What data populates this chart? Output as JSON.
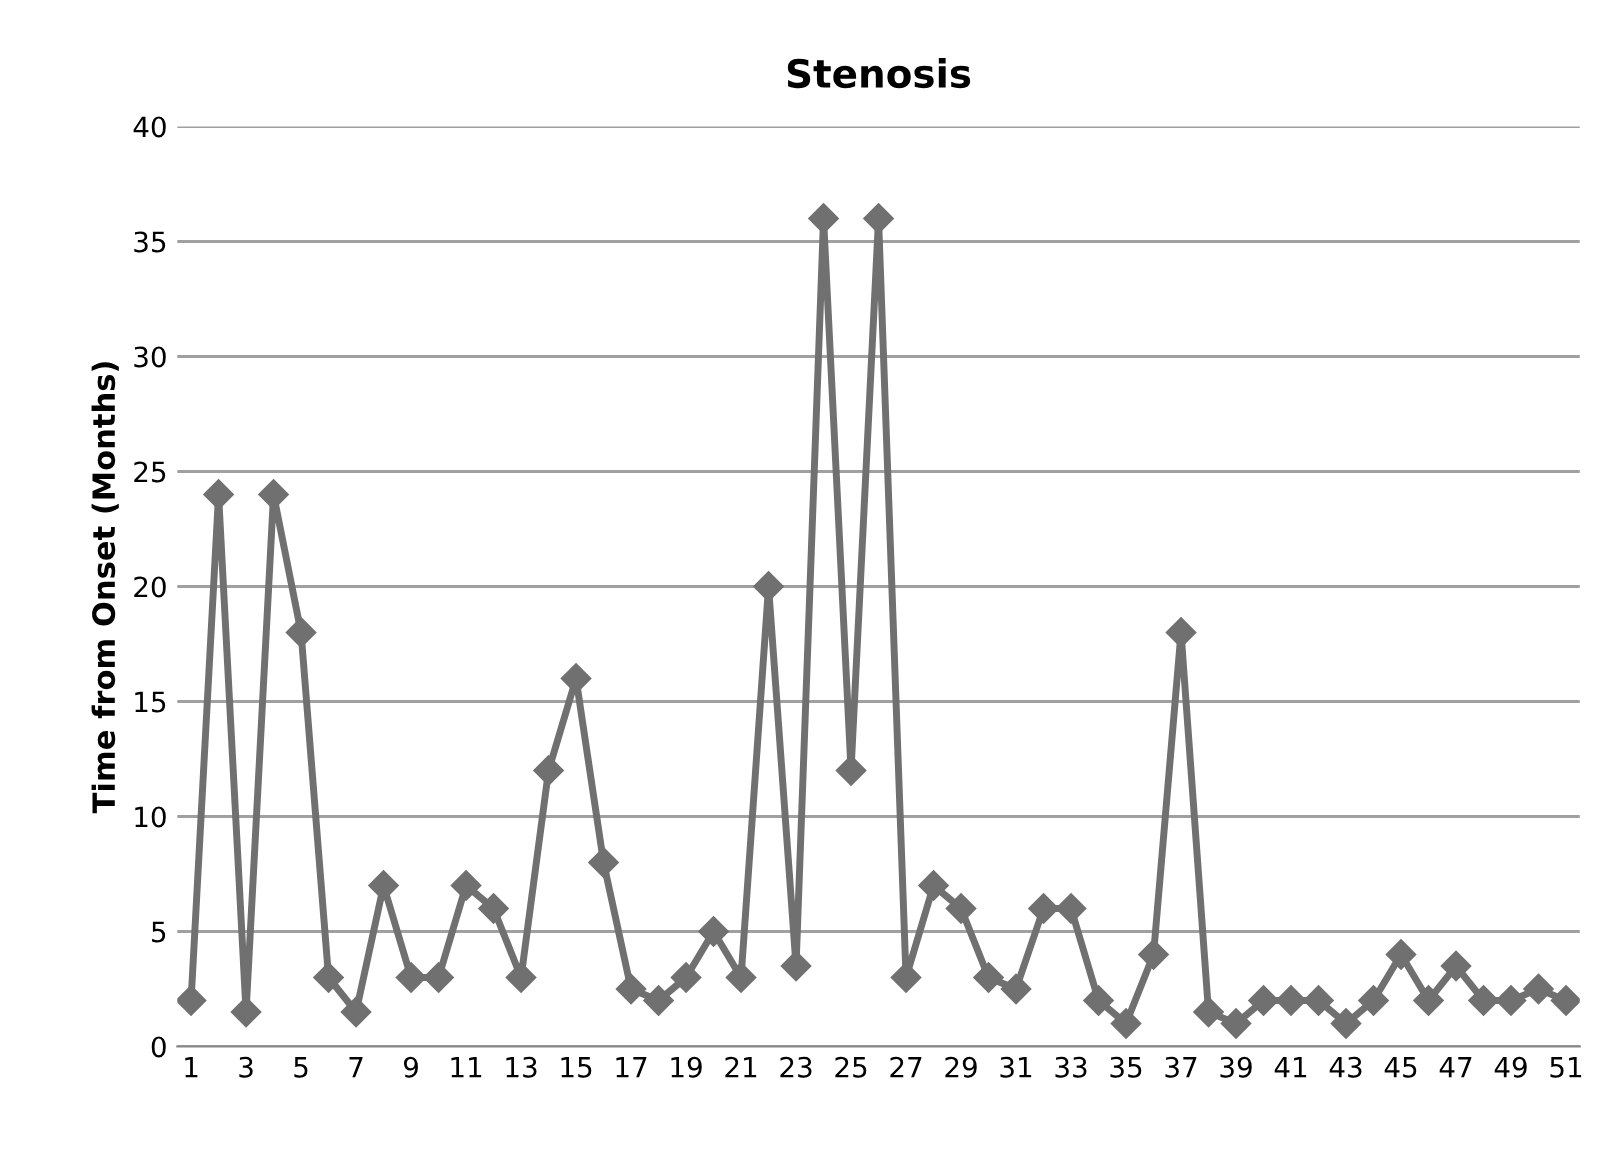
{
  "chart_data": {
    "type": "line",
    "title": "Stenosis",
    "ylabel": "Time from Onset (Months)",
    "categories": [
      "1",
      null,
      "3",
      null,
      "5",
      null,
      "7",
      null,
      "9",
      null,
      "11",
      null,
      "13",
      null,
      "15",
      null,
      "17",
      null,
      "19",
      null,
      "21",
      null,
      "23",
      null,
      "25",
      null,
      "27",
      null,
      "29",
      null,
      "31",
      null,
      "33",
      null,
      "35",
      null,
      "37",
      null,
      "39",
      null,
      "41",
      null,
      "43",
      null,
      "45",
      null,
      "47",
      null,
      "49",
      null,
      "51"
    ],
    "series": [
      {
        "color": "#707070",
        "values": [
          2,
          24,
          1.5,
          24,
          18,
          3,
          1.5,
          7,
          3,
          3,
          7,
          6,
          3,
          12,
          16,
          8,
          2.5,
          2,
          3,
          5,
          3,
          20,
          3.5,
          36,
          12,
          36,
          3,
          7,
          6,
          3,
          2.5,
          6,
          6,
          2,
          1,
          4,
          18,
          1.5,
          1,
          2,
          2,
          2,
          1,
          2,
          4,
          2,
          3.5,
          2,
          2,
          2.5,
          2
        ]
      }
    ],
    "ylim": [
      0,
      40
    ],
    "yticks": [
      0,
      5,
      10,
      15,
      20,
      25,
      30,
      35,
      40
    ],
    "grid": "y",
    "marker": "diamond",
    "line_style": "solid",
    "legend": false
  }
}
